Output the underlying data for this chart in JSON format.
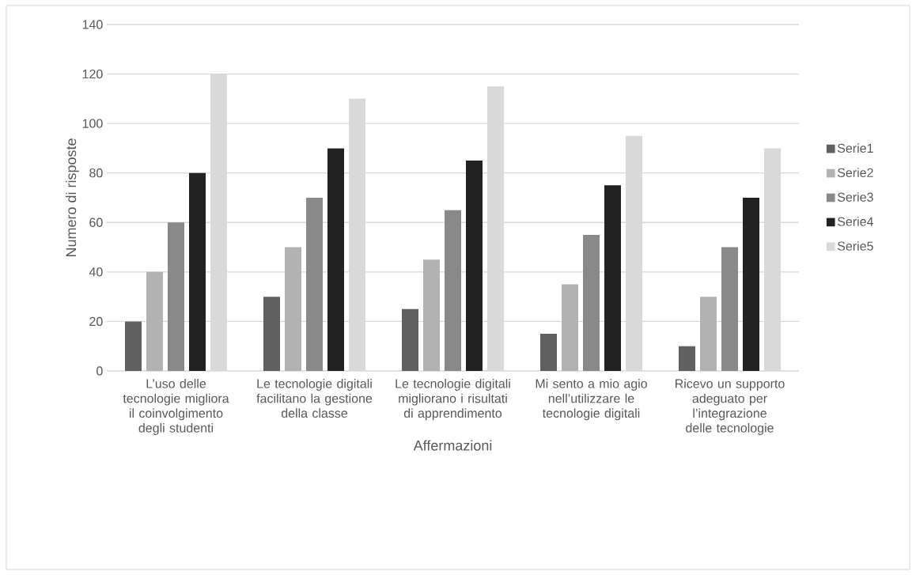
{
  "chart_data": {
    "type": "bar",
    "xlabel": "Affermazioni",
    "ylabel": "Numero di risposte",
    "categories": [
      "L’uso delle tecnologie migliora il coinvolgimento degli studenti",
      "Le tecnologie digitali facilitano la gestione della classe",
      "Le tecnologie digitali migliorano i risultati di apprendimento",
      "Mi sento a mio agio nell’utilizzare le tecnologie digitali",
      "Ricevo un supporto adeguato per l’integrazione delle tecnologie"
    ],
    "series": [
      {
        "name": "Serie1",
        "color": "#606060",
        "values": [
          20,
          30,
          25,
          15,
          10
        ]
      },
      {
        "name": "Serie2",
        "color": "#b2b2b2",
        "values": [
          40,
          50,
          45,
          35,
          30
        ]
      },
      {
        "name": "Serie3",
        "color": "#898989",
        "values": [
          60,
          70,
          65,
          55,
          50
        ]
      },
      {
        "name": "Serie4",
        "color": "#222222",
        "values": [
          80,
          90,
          85,
          75,
          70
        ]
      },
      {
        "name": "Serie5",
        "color": "#d9d9d9",
        "values": [
          120,
          110,
          115,
          95,
          90
        ]
      }
    ],
    "ylim": [
      0,
      140
    ],
    "yticks": [
      0,
      20,
      40,
      60,
      80,
      100,
      120,
      140
    ],
    "grid": "y",
    "legend": "right"
  }
}
